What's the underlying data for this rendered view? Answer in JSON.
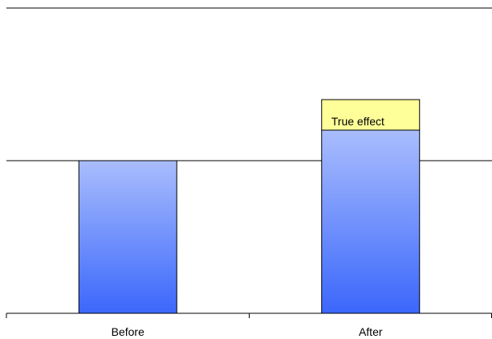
{
  "chart_data": {
    "type": "bar",
    "categories": [
      "Before",
      "After"
    ],
    "series": [
      {
        "values": [
          100,
          120
        ]
      },
      {
        "values": [
          0,
          20
        ]
      }
    ],
    "stacked": true,
    "ylim": [
      0,
      200
    ],
    "grid": true,
    "annotations": [
      {
        "text": "True effect",
        "category": "After",
        "segment": 2
      }
    ],
    "colors": {
      "bar_top": "#a9bdfd",
      "bar_bottom": "#3b67fb",
      "effect_fill": "#ffff99",
      "stroke": "#000000"
    }
  }
}
